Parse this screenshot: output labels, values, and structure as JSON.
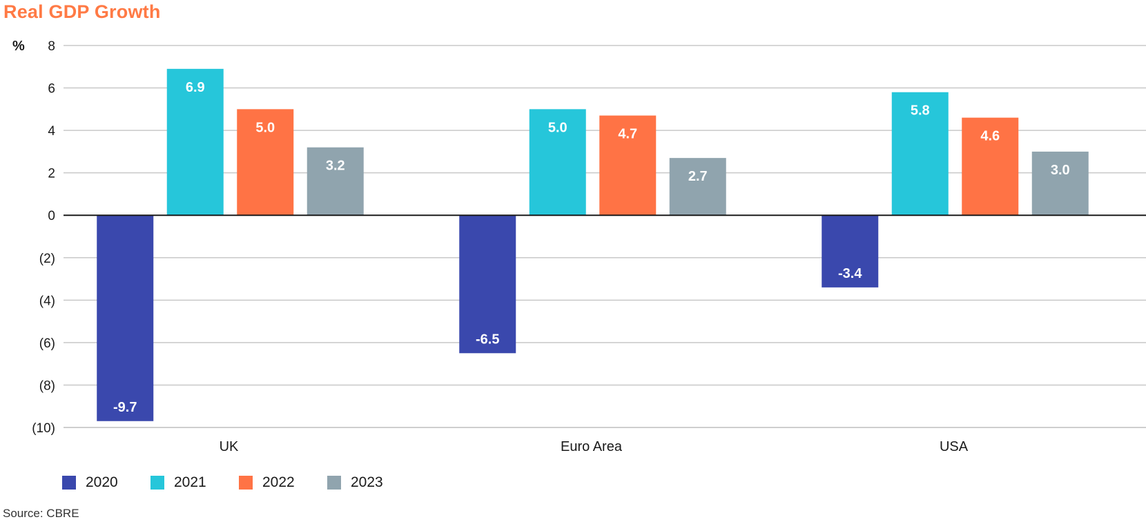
{
  "chart_data": {
    "type": "bar",
    "title": "Real GDP Growth",
    "ylabel": "%",
    "categories": [
      "UK",
      "Euro Area",
      "USA"
    ],
    "series": [
      {
        "name": "2020",
        "color": "#3a48ad",
        "values": [
          -9.7,
          -6.5,
          -3.4
        ],
        "labels": [
          "-9.7",
          "-6.5",
          "-3.4"
        ]
      },
      {
        "name": "2021",
        "color": "#26c6da",
        "values": [
          6.9,
          5.0,
          5.8
        ],
        "labels": [
          "6.9",
          "5.0",
          "5.8"
        ]
      },
      {
        "name": "2022",
        "color": "#ff7345",
        "values": [
          5.0,
          4.7,
          4.6
        ],
        "labels": [
          "5.0",
          "4.7",
          "4.6"
        ]
      },
      {
        "name": "2023",
        "color": "#90a4ae",
        "values": [
          3.2,
          2.7,
          3.0
        ],
        "labels": [
          "3.2",
          "2.7",
          "3.0"
        ]
      }
    ],
    "yticks": [
      8,
      6,
      4,
      2,
      0,
      -2,
      -4,
      -6,
      -8,
      -10
    ],
    "ytick_labels": [
      "8",
      "6",
      "4",
      "2",
      "0",
      "(2)",
      "(4)",
      "(6)",
      "(8)",
      "(10)"
    ],
    "ylim": [
      -10,
      8
    ],
    "grid": true,
    "legend_position": "bottom-left"
  },
  "source": "Source: CBRE"
}
